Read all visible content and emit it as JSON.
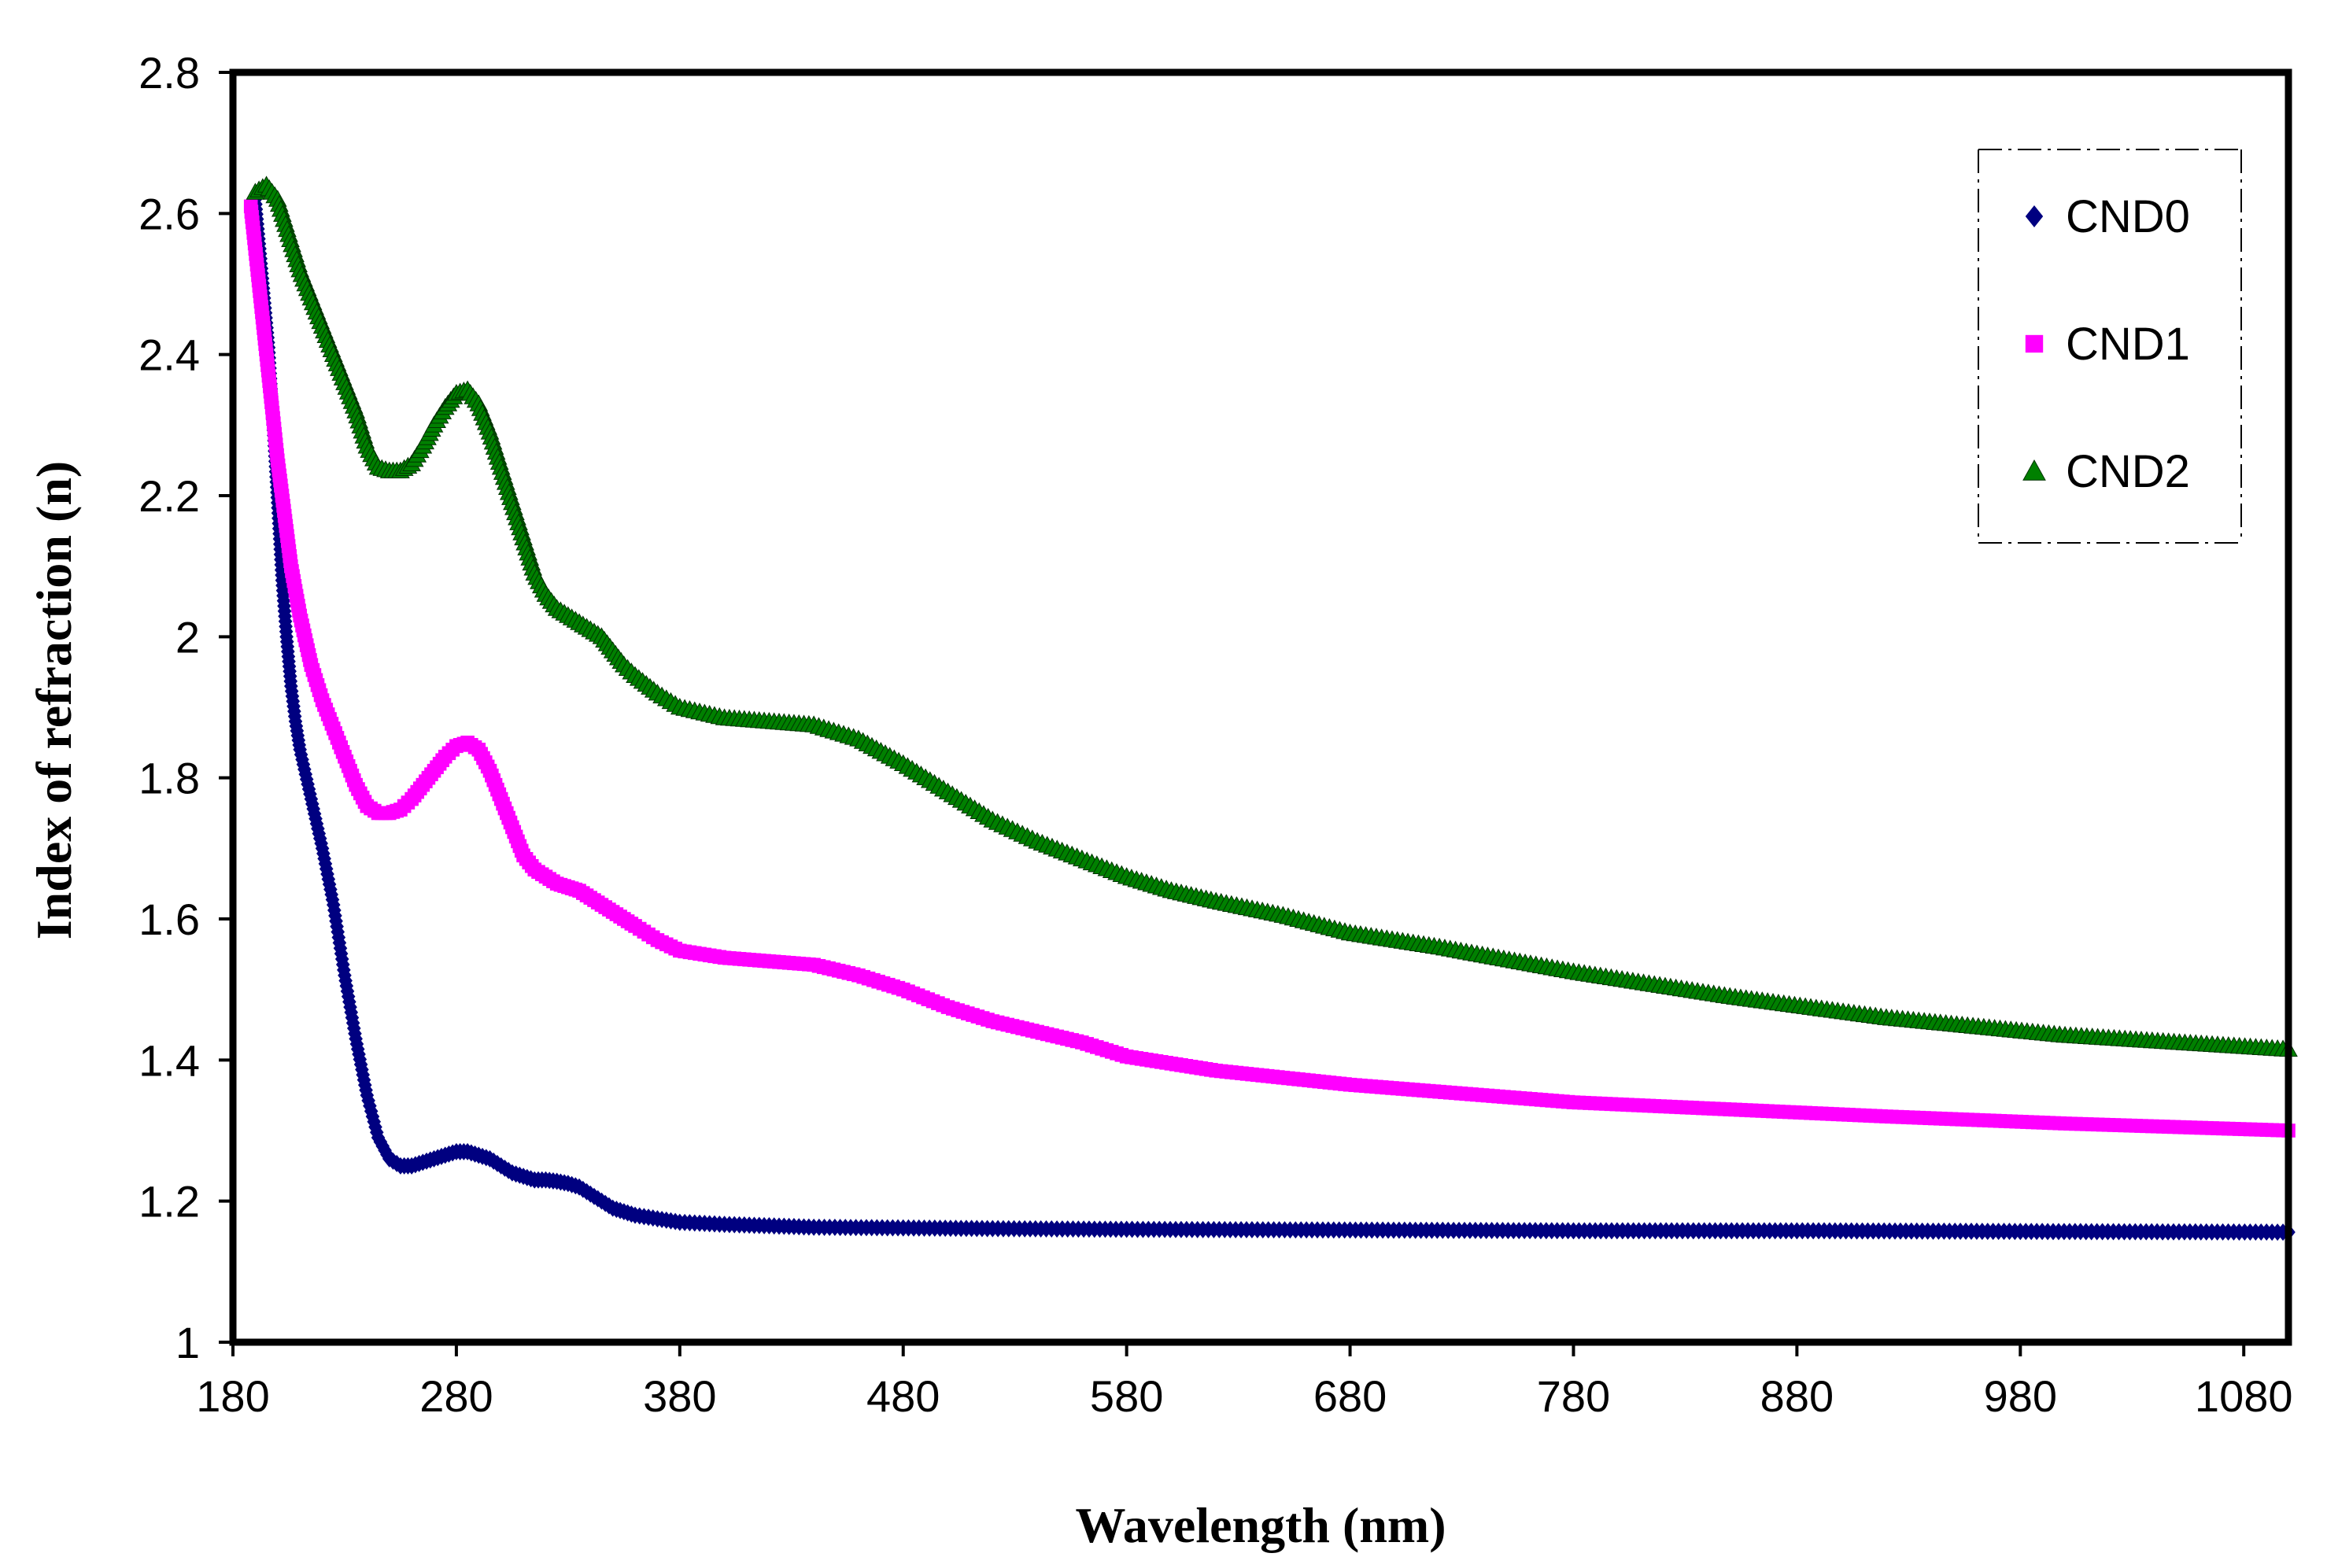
{
  "chart_data": {
    "type": "scatter",
    "title": "",
    "xlabel": "Wavelength (nm)",
    "ylabel": "Index of refraction (n)",
    "xlim": [
      180,
      1100
    ],
    "ylim": [
      1,
      2.8
    ],
    "x_ticks": [
      180,
      280,
      380,
      480,
      580,
      680,
      780,
      880,
      980,
      1080
    ],
    "x_tick_labels": [
      "180",
      "280",
      "380",
      "480",
      "580",
      "680",
      "780",
      "880",
      "980",
      "1080"
    ],
    "y_ticks": [
      1,
      1.2,
      1.4,
      1.6,
      1.8,
      2,
      2.2,
      2.4,
      2.6,
      2.8
    ],
    "y_tick_labels": [
      "1",
      "1.2",
      "1.4",
      "1.6",
      "1.8",
      "2",
      "2.2",
      "2.4",
      "2.6",
      "2.8"
    ],
    "grid": false,
    "legend_position": "top-right",
    "series": [
      {
        "name": "CND0",
        "marker": "diamond",
        "color": "#000080",
        "points": [
          [
            190,
            2.62
          ],
          [
            192,
            2.55
          ],
          [
            194,
            2.48
          ],
          [
            196,
            2.41
          ],
          [
            198,
            2.3
          ],
          [
            200,
            2.19
          ],
          [
            202,
            2.08
          ],
          [
            204,
            2.0
          ],
          [
            206,
            1.93
          ],
          [
            208,
            1.88
          ],
          [
            210,
            1.84
          ],
          [
            215,
            1.77
          ],
          [
            220,
            1.7
          ],
          [
            225,
            1.62
          ],
          [
            230,
            1.52
          ],
          [
            235,
            1.43
          ],
          [
            240,
            1.35
          ],
          [
            245,
            1.29
          ],
          [
            250,
            1.26
          ],
          [
            255,
            1.25
          ],
          [
            260,
            1.25
          ],
          [
            265,
            1.255
          ],
          [
            270,
            1.26
          ],
          [
            275,
            1.265
          ],
          [
            280,
            1.27
          ],
          [
            285,
            1.27
          ],
          [
            290,
            1.265
          ],
          [
            295,
            1.26
          ],
          [
            300,
            1.25
          ],
          [
            305,
            1.24
          ],
          [
            310,
            1.235
          ],
          [
            315,
            1.23
          ],
          [
            320,
            1.23
          ],
          [
            325,
            1.228
          ],
          [
            330,
            1.225
          ],
          [
            335,
            1.22
          ],
          [
            340,
            1.21
          ],
          [
            345,
            1.2
          ],
          [
            350,
            1.19
          ],
          [
            355,
            1.185
          ],
          [
            360,
            1.18
          ],
          [
            370,
            1.175
          ],
          [
            380,
            1.17
          ],
          [
            400,
            1.167
          ],
          [
            420,
            1.165
          ],
          [
            440,
            1.163
          ],
          [
            480,
            1.162
          ],
          [
            520,
            1.161
          ],
          [
            580,
            1.16
          ],
          [
            680,
            1.159
          ],
          [
            780,
            1.158
          ],
          [
            880,
            1.158
          ],
          [
            980,
            1.157
          ],
          [
            1100,
            1.156
          ]
        ]
      },
      {
        "name": "CND1",
        "marker": "square",
        "color": "#FF00FF",
        "points": [
          [
            188,
            2.61
          ],
          [
            190,
            2.55
          ],
          [
            192,
            2.49
          ],
          [
            194,
            2.43
          ],
          [
            196,
            2.37
          ],
          [
            198,
            2.31
          ],
          [
            200,
            2.25
          ],
          [
            202,
            2.2
          ],
          [
            204,
            2.15
          ],
          [
            206,
            2.1
          ],
          [
            210,
            2.03
          ],
          [
            215,
            1.96
          ],
          [
            220,
            1.91
          ],
          [
            225,
            1.87
          ],
          [
            230,
            1.83
          ],
          [
            235,
            1.79
          ],
          [
            240,
            1.76
          ],
          [
            245,
            1.75
          ],
          [
            250,
            1.75
          ],
          [
            255,
            1.755
          ],
          [
            260,
            1.77
          ],
          [
            265,
            1.79
          ],
          [
            270,
            1.81
          ],
          [
            275,
            1.83
          ],
          [
            280,
            1.845
          ],
          [
            285,
            1.85
          ],
          [
            290,
            1.84
          ],
          [
            295,
            1.81
          ],
          [
            300,
            1.77
          ],
          [
            305,
            1.73
          ],
          [
            310,
            1.69
          ],
          [
            315,
            1.67
          ],
          [
            320,
            1.66
          ],
          [
            325,
            1.65
          ],
          [
            330,
            1.645
          ],
          [
            335,
            1.64
          ],
          [
            340,
            1.63
          ],
          [
            345,
            1.62
          ],
          [
            350,
            1.61
          ],
          [
            355,
            1.6
          ],
          [
            360,
            1.59
          ],
          [
            370,
            1.57
          ],
          [
            380,
            1.555
          ],
          [
            400,
            1.545
          ],
          [
            420,
            1.54
          ],
          [
            440,
            1.535
          ],
          [
            460,
            1.52
          ],
          [
            480,
            1.5
          ],
          [
            500,
            1.475
          ],
          [
            520,
            1.455
          ],
          [
            540,
            1.44
          ],
          [
            560,
            1.425
          ],
          [
            580,
            1.405
          ],
          [
            600,
            1.395
          ],
          [
            620,
            1.385
          ],
          [
            650,
            1.375
          ],
          [
            680,
            1.365
          ],
          [
            720,
            1.355
          ],
          [
            780,
            1.34
          ],
          [
            850,
            1.33
          ],
          [
            920,
            1.32
          ],
          [
            1000,
            1.31
          ],
          [
            1100,
            1.3
          ]
        ]
      },
      {
        "name": "CND2",
        "marker": "triangle",
        "color": "#008000",
        "points": [
          [
            190,
            2.63
          ],
          [
            195,
            2.64
          ],
          [
            200,
            2.62
          ],
          [
            205,
            2.57
          ],
          [
            210,
            2.52
          ],
          [
            215,
            2.48
          ],
          [
            220,
            2.44
          ],
          [
            225,
            2.4
          ],
          [
            230,
            2.36
          ],
          [
            235,
            2.32
          ],
          [
            240,
            2.27
          ],
          [
            245,
            2.24
          ],
          [
            250,
            2.235
          ],
          [
            255,
            2.235
          ],
          [
            260,
            2.245
          ],
          [
            265,
            2.27
          ],
          [
            270,
            2.3
          ],
          [
            275,
            2.325
          ],
          [
            280,
            2.345
          ],
          [
            285,
            2.35
          ],
          [
            290,
            2.33
          ],
          [
            295,
            2.29
          ],
          [
            300,
            2.24
          ],
          [
            305,
            2.19
          ],
          [
            310,
            2.14
          ],
          [
            315,
            2.09
          ],
          [
            320,
            2.06
          ],
          [
            325,
            2.04
          ],
          [
            330,
            2.03
          ],
          [
            335,
            2.02
          ],
          [
            340,
            2.01
          ],
          [
            345,
            2.0
          ],
          [
            350,
            1.98
          ],
          [
            355,
            1.96
          ],
          [
            360,
            1.945
          ],
          [
            370,
            1.92
          ],
          [
            380,
            1.9
          ],
          [
            400,
            1.885
          ],
          [
            420,
            1.88
          ],
          [
            440,
            1.875
          ],
          [
            460,
            1.855
          ],
          [
            480,
            1.82
          ],
          [
            500,
            1.78
          ],
          [
            520,
            1.74
          ],
          [
            540,
            1.71
          ],
          [
            560,
            1.685
          ],
          [
            580,
            1.66
          ],
          [
            600,
            1.64
          ],
          [
            620,
            1.625
          ],
          [
            650,
            1.605
          ],
          [
            680,
            1.58
          ],
          [
            720,
            1.56
          ],
          [
            780,
            1.525
          ],
          [
            850,
            1.49
          ],
          [
            920,
            1.46
          ],
          [
            1000,
            1.435
          ],
          [
            1100,
            1.415
          ]
        ]
      }
    ]
  }
}
